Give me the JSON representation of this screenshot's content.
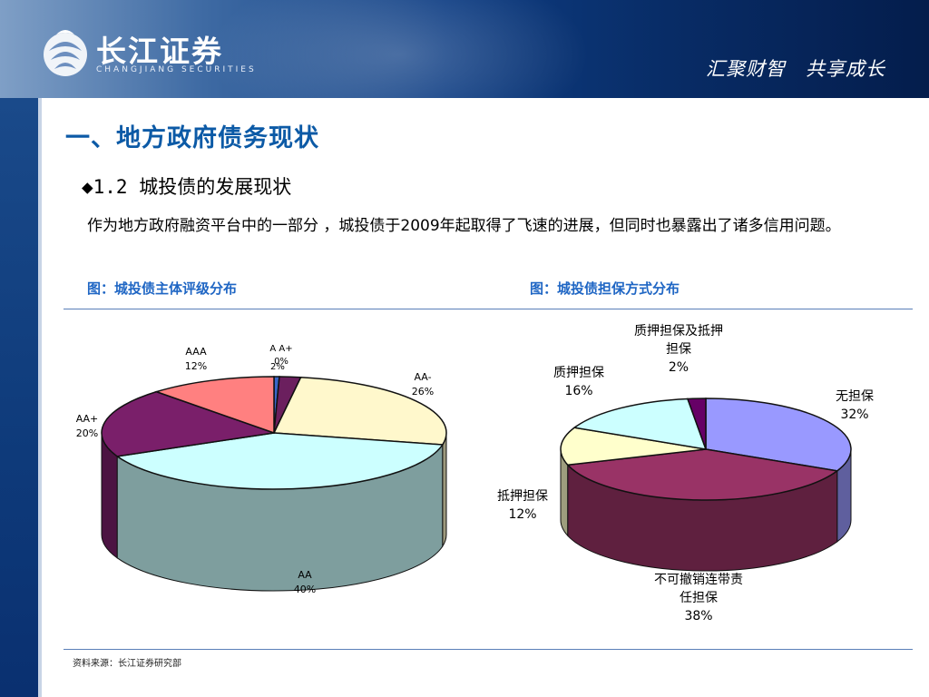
{
  "header": {
    "logo_cn": "长江证券",
    "logo_en": "CHANGJIANG SECURITIES",
    "slogan": "汇聚财智　共享成长"
  },
  "page": {
    "title": "一、地方政府债务现状",
    "subtitle": "◆1.2 城投债的发展现状",
    "paragraph": "作为地方政府融资平台中的一部分 ，城投债于2009年起取得了飞速的进展，但同时也暴露出了诸多信用问题。",
    "fig_left_caption": "图：城投债主体评级分布",
    "fig_right_caption": "图：城投债担保方式分布",
    "source": "资料来源：长江证券研究部"
  },
  "colors": {
    "header_dark": "#041d4c",
    "title_blue": "#0c5aa6",
    "caption_blue": "#1f66c4"
  },
  "chart_data": [
    {
      "type": "pie",
      "slices": [
        {
          "label": "A A+",
          "percent": "0%",
          "value": 0.5,
          "color": "#3a66c8"
        },
        {
          "label": "",
          "percent": "2%",
          "value": 2,
          "color": "#6b1f5e"
        },
        {
          "label": "AA-",
          "percent": "26%",
          "value": 26,
          "color": "#fff8cc"
        },
        {
          "label": "AA",
          "percent": "40%",
          "value": 40,
          "color": "#ccffff"
        },
        {
          "label": "AA+",
          "percent": "20%",
          "value": 20,
          "color": "#7a1f6a"
        },
        {
          "label": "AAA",
          "percent": "12%",
          "value": 12,
          "color": "#ff8080"
        }
      ]
    },
    {
      "type": "pie",
      "slices": [
        {
          "label": "无担保",
          "percent": "32%",
          "value": 32,
          "color": "#9999ff"
        },
        {
          "label": "不可撤销连带责任担保",
          "percent": "38%",
          "value": 38,
          "color": "#993366"
        },
        {
          "label": "抵押担保",
          "percent": "12%",
          "value": 12,
          "color": "#ffffcc"
        },
        {
          "label": "质押担保",
          "percent": "16%",
          "value": 16,
          "color": "#ccffff"
        },
        {
          "label": "质押担保及抵押担保",
          "percent": "2%",
          "value": 2,
          "color": "#660066"
        }
      ]
    }
  ]
}
